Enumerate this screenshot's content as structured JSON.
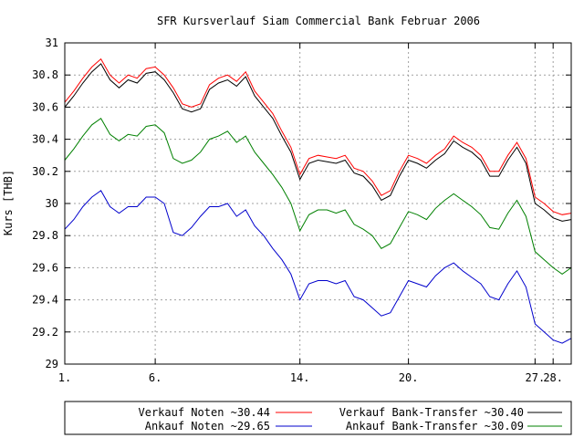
{
  "chart_data": {
    "type": "line",
    "title": "SFR Kursverlauf Siam Commercial Bank Februar 2006",
    "xlabel": "",
    "ylabel": "Kurs [THB]",
    "ylim": [
      29,
      31
    ],
    "yticks": [
      29,
      29.2,
      29.4,
      29.6,
      29.8,
      30,
      30.2,
      30.4,
      30.6,
      30.8,
      31
    ],
    "ytick_labels": [
      "29",
      "29.2",
      "29.4",
      "29.6",
      "29.8",
      "30",
      "30.2",
      "30.4",
      "30.6",
      "30.8",
      "31"
    ],
    "xlim": [
      1,
      29
    ],
    "xticks": [
      1,
      6,
      14,
      20,
      27,
      28
    ],
    "xtick_labels": [
      "1.",
      "6.",
      "14.",
      "20.",
      "27.",
      "28."
    ],
    "grid": true,
    "legend_position": "bottom",
    "series": [
      {
        "name": "Verkauf Noten ~30.44",
        "color": "#ff0000",
        "x": [
          1,
          1.5,
          2,
          2.5,
          3,
          3.5,
          4,
          4.5,
          5,
          5.5,
          6,
          6.5,
          7,
          7.5,
          8,
          8.5,
          9,
          9.5,
          10,
          10.5,
          11,
          11.5,
          12,
          12.5,
          13,
          13.5,
          14,
          14.5,
          15,
          15.5,
          16,
          16.5,
          17,
          17.5,
          18,
          18.5,
          19,
          19.5,
          20,
          20.5,
          21,
          21.5,
          22,
          22.5,
          23,
          23.5,
          24,
          24.5,
          25,
          25.5,
          26,
          26.5,
          27,
          27.5,
          28,
          28.5,
          29
        ],
        "values": [
          30.63,
          30.7,
          30.78,
          30.85,
          30.9,
          30.8,
          30.75,
          30.8,
          30.78,
          30.84,
          30.85,
          30.8,
          30.72,
          30.62,
          30.6,
          30.62,
          30.74,
          30.78,
          30.8,
          30.76,
          30.82,
          30.7,
          30.63,
          30.56,
          30.45,
          30.35,
          30.18,
          30.28,
          30.3,
          30.29,
          30.28,
          30.3,
          30.22,
          30.2,
          30.14,
          30.05,
          30.08,
          30.2,
          30.3,
          30.28,
          30.25,
          30.3,
          30.34,
          30.42,
          30.38,
          30.35,
          30.3,
          30.2,
          30.2,
          30.3,
          30.38,
          30.28,
          30.04,
          30.0,
          29.95,
          29.93,
          29.94
        ]
      },
      {
        "name": "Verkauf Bank-Transfer ~30.40",
        "color": "#000000",
        "x": [
          1,
          1.5,
          2,
          2.5,
          3,
          3.5,
          4,
          4.5,
          5,
          5.5,
          6,
          6.5,
          7,
          7.5,
          8,
          8.5,
          9,
          9.5,
          10,
          10.5,
          11,
          11.5,
          12,
          12.5,
          13,
          13.5,
          14,
          14.5,
          15,
          15.5,
          16,
          16.5,
          17,
          17.5,
          18,
          18.5,
          19,
          19.5,
          20,
          20.5,
          21,
          21.5,
          22,
          22.5,
          23,
          23.5,
          24,
          24.5,
          25,
          25.5,
          26,
          26.5,
          27,
          27.5,
          28,
          28.5,
          29
        ],
        "values": [
          30.6,
          30.67,
          30.75,
          30.82,
          30.87,
          30.77,
          30.72,
          30.77,
          30.75,
          30.81,
          30.82,
          30.77,
          30.69,
          30.59,
          30.57,
          30.59,
          30.71,
          30.75,
          30.77,
          30.73,
          30.79,
          30.67,
          30.6,
          30.53,
          30.42,
          30.32,
          30.15,
          30.25,
          30.27,
          30.26,
          30.25,
          30.27,
          30.19,
          30.17,
          30.11,
          30.02,
          30.05,
          30.17,
          30.27,
          30.25,
          30.22,
          30.27,
          30.31,
          30.39,
          30.35,
          30.32,
          30.27,
          30.17,
          30.17,
          30.27,
          30.35,
          30.25,
          30.0,
          29.96,
          29.91,
          29.89,
          29.9
        ]
      },
      {
        "name": "Ankauf Noten ~29.65",
        "color": "#0000cc",
        "x": [
          1,
          1.5,
          2,
          2.5,
          3,
          3.5,
          4,
          4.5,
          5,
          5.5,
          6,
          6.5,
          7,
          7.5,
          8,
          8.5,
          9,
          9.5,
          10,
          10.5,
          11,
          11.5,
          12,
          12.5,
          13,
          13.5,
          14,
          14.5,
          15,
          15.5,
          16,
          16.5,
          17,
          17.5,
          18,
          18.5,
          19,
          19.5,
          20,
          20.5,
          21,
          21.5,
          22,
          22.5,
          23,
          23.5,
          24,
          24.5,
          25,
          25.5,
          26,
          26.5,
          27,
          27.5,
          28,
          28.5,
          29
        ],
        "values": [
          29.84,
          29.9,
          29.98,
          30.04,
          30.08,
          29.98,
          29.94,
          29.98,
          29.98,
          30.04,
          30.04,
          30.0,
          29.82,
          29.8,
          29.85,
          29.92,
          29.98,
          29.98,
          30.0,
          29.92,
          29.96,
          29.86,
          29.8,
          29.72,
          29.65,
          29.56,
          29.4,
          29.5,
          29.52,
          29.52,
          29.5,
          29.52,
          29.42,
          29.4,
          29.35,
          29.3,
          29.32,
          29.42,
          29.52,
          29.5,
          29.48,
          29.55,
          29.6,
          29.63,
          29.58,
          29.54,
          29.5,
          29.42,
          29.4,
          29.5,
          29.58,
          29.48,
          29.25,
          29.2,
          29.15,
          29.13,
          29.16
        ]
      },
      {
        "name": "Ankauf Bank-Transfer ~30.09",
        "color": "#008000",
        "x": [
          1,
          1.5,
          2,
          2.5,
          3,
          3.5,
          4,
          4.5,
          5,
          5.5,
          6,
          6.5,
          7,
          7.5,
          8,
          8.5,
          9,
          9.5,
          10,
          10.5,
          11,
          11.5,
          12,
          12.5,
          13,
          13.5,
          14,
          14.5,
          15,
          15.5,
          16,
          16.5,
          17,
          17.5,
          18,
          18.5,
          19,
          19.5,
          20,
          20.5,
          21,
          21.5,
          22,
          22.5,
          23,
          23.5,
          24,
          24.5,
          25,
          25.5,
          26,
          26.5,
          27,
          27.5,
          28,
          28.5,
          29
        ],
        "values": [
          30.27,
          30.34,
          30.42,
          30.49,
          30.53,
          30.43,
          30.39,
          30.43,
          30.42,
          30.48,
          30.49,
          30.44,
          30.28,
          30.25,
          30.27,
          30.32,
          30.4,
          30.42,
          30.45,
          30.38,
          30.42,
          30.32,
          30.25,
          30.18,
          30.1,
          30.0,
          29.83,
          29.93,
          29.96,
          29.96,
          29.94,
          29.96,
          29.87,
          29.84,
          29.8,
          29.72,
          29.75,
          29.85,
          29.95,
          29.93,
          29.9,
          29.97,
          30.02,
          30.06,
          30.02,
          29.98,
          29.93,
          29.85,
          29.84,
          29.94,
          30.02,
          29.92,
          29.7,
          29.65,
          29.6,
          29.56,
          29.6
        ]
      }
    ]
  }
}
